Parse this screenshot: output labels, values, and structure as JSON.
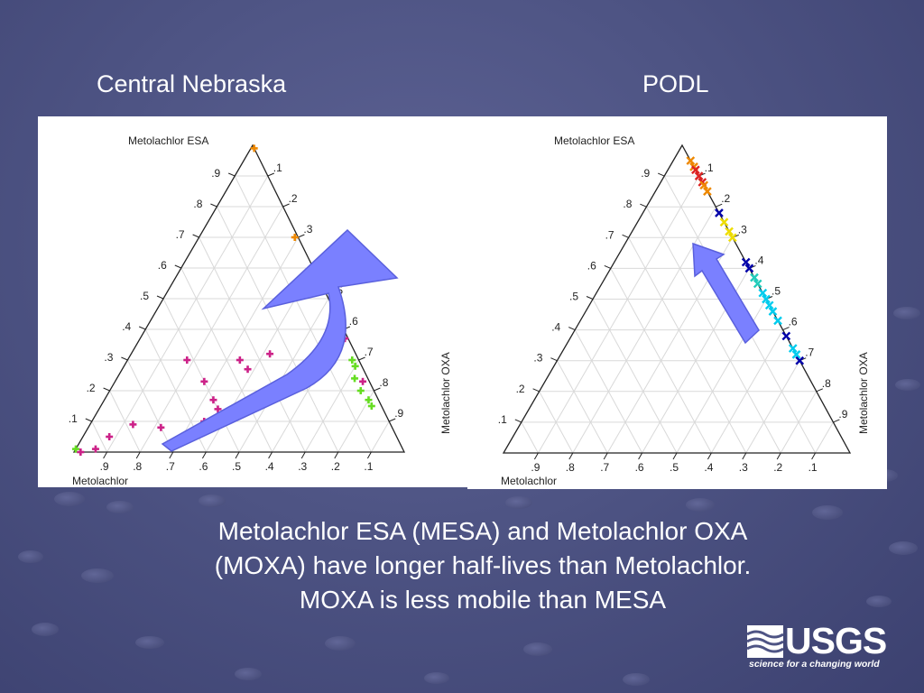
{
  "slide": {
    "caption_lines": [
      "Metolachlor ESA (MESA) and Metolachlor OXA",
      "(MOXA) have longer half-lives than Metolachlor.",
      "MOXA is less mobile than MESA"
    ]
  },
  "logo": {
    "text": "USGS",
    "tagline": "science for a changing world"
  },
  "chart_data": [
    {
      "type": "scatter",
      "subtype": "ternary",
      "title": "Central Nebraska",
      "axes": {
        "top": "Metolachlor ESA",
        "right": "Metolachlor OXA",
        "left": "Metolachlor"
      },
      "left_ticks": [
        ".1",
        ".2",
        ".3",
        ".4",
        ".5",
        ".6",
        ".7",
        ".8",
        ".9"
      ],
      "right_ticks": [
        ".1",
        ".2",
        ".3",
        ".4",
        ".5",
        ".6",
        ".7",
        ".8",
        ".9"
      ],
      "bottom_ticks": [
        ".9",
        ".8",
        ".7",
        ".6",
        ".5",
        ".4",
        ".3",
        ".2",
        ".1"
      ],
      "grid": true,
      "marker": "plus",
      "arrow": "curved",
      "series_colors": [
        "#cc2288",
        "#66dd22",
        "#ee8800"
      ],
      "points": [
        {
          "esa": 0.99,
          "oxa": 0.01,
          "color": "#ee8800"
        },
        {
          "esa": 0.7,
          "oxa": 0.29,
          "color": "#ee8800"
        },
        {
          "esa": 0.37,
          "oxa": 0.62,
          "color": "#cc2288"
        },
        {
          "esa": 0.3,
          "oxa": 0.68,
          "color": "#66dd22"
        },
        {
          "esa": 0.28,
          "oxa": 0.7,
          "color": "#66dd22"
        },
        {
          "esa": 0.24,
          "oxa": 0.72,
          "color": "#66dd22"
        },
        {
          "esa": 0.2,
          "oxa": 0.76,
          "color": "#66dd22"
        },
        {
          "esa": 0.17,
          "oxa": 0.8,
          "color": "#66dd22"
        },
        {
          "esa": 0.15,
          "oxa": 0.82,
          "color": "#66dd22"
        },
        {
          "esa": 0.23,
          "oxa": 0.75,
          "color": "#cc2288"
        },
        {
          "esa": 0.32,
          "oxa": 0.42,
          "color": "#cc2288"
        },
        {
          "esa": 0.3,
          "oxa": 0.34,
          "color": "#cc2288"
        },
        {
          "esa": 0.27,
          "oxa": 0.38,
          "color": "#cc2288"
        },
        {
          "esa": 0.3,
          "oxa": 0.18,
          "color": "#cc2288"
        },
        {
          "esa": 0.23,
          "oxa": 0.27,
          "color": "#cc2288"
        },
        {
          "esa": 0.17,
          "oxa": 0.33,
          "color": "#cc2288"
        },
        {
          "esa": 0.14,
          "oxa": 0.36,
          "color": "#cc2288"
        },
        {
          "esa": 0.09,
          "oxa": 0.39,
          "color": "#cc2288"
        },
        {
          "esa": 0.1,
          "oxa": 0.34,
          "color": "#cc2288"
        },
        {
          "esa": 0.08,
          "oxa": 0.22,
          "color": "#cc2288"
        },
        {
          "esa": 0.09,
          "oxa": 0.13,
          "color": "#cc2288"
        },
        {
          "esa": 0.05,
          "oxa": 0.08,
          "color": "#cc2288"
        },
        {
          "esa": 0.01,
          "oxa": 0.06,
          "color": "#cc2288"
        },
        {
          "esa": 0.0,
          "oxa": 0.02,
          "color": "#cc2288"
        },
        {
          "esa": 0.01,
          "oxa": 0.0,
          "color": "#66dd22"
        }
      ]
    },
    {
      "type": "scatter",
      "subtype": "ternary",
      "title": "PODL",
      "axes": {
        "top": "Metolachlor ESA",
        "right": "Metolachlor OXA",
        "left": "Metolachlor"
      },
      "left_ticks": [
        ".1",
        ".2",
        ".3",
        ".4",
        ".5",
        ".6",
        ".7",
        ".8",
        ".9"
      ],
      "right_ticks": [
        ".1",
        ".2",
        ".3",
        ".4",
        ".5",
        ".6",
        ".7",
        ".8",
        ".9"
      ],
      "bottom_ticks": [
        ".9",
        ".8",
        ".7",
        ".6",
        ".5",
        ".4",
        ".3",
        ".2",
        ".1"
      ],
      "grid": true,
      "marker": "cross",
      "arrow": "straight",
      "series_colors": [
        "#ee8800",
        "#dd2222",
        "#0000aa",
        "#eedd00",
        "#22ccbb",
        "#00ccee"
      ],
      "points": [
        {
          "esa": 0.95,
          "oxa": 0.05,
          "color": "#ee8800"
        },
        {
          "esa": 0.93,
          "oxa": 0.07,
          "color": "#ee8800"
        },
        {
          "esa": 0.92,
          "oxa": 0.08,
          "color": "#dd2222"
        },
        {
          "esa": 0.9,
          "oxa": 0.1,
          "color": "#dd2222"
        },
        {
          "esa": 0.88,
          "oxa": 0.12,
          "color": "#dd2222"
        },
        {
          "esa": 0.87,
          "oxa": 0.13,
          "color": "#ee8800"
        },
        {
          "esa": 0.85,
          "oxa": 0.15,
          "color": "#ee8800"
        },
        {
          "esa": 0.78,
          "oxa": 0.22,
          "color": "#0000aa"
        },
        {
          "esa": 0.75,
          "oxa": 0.25,
          "color": "#eedd00"
        },
        {
          "esa": 0.72,
          "oxa": 0.28,
          "color": "#eedd00"
        },
        {
          "esa": 0.7,
          "oxa": 0.3,
          "color": "#eedd00"
        },
        {
          "esa": 0.62,
          "oxa": 0.38,
          "color": "#0000aa"
        },
        {
          "esa": 0.6,
          "oxa": 0.4,
          "color": "#0000aa"
        },
        {
          "esa": 0.57,
          "oxa": 0.43,
          "color": "#22ccbb"
        },
        {
          "esa": 0.55,
          "oxa": 0.45,
          "color": "#22ccbb"
        },
        {
          "esa": 0.52,
          "oxa": 0.48,
          "color": "#00ccee"
        },
        {
          "esa": 0.5,
          "oxa": 0.5,
          "color": "#00ccee"
        },
        {
          "esa": 0.48,
          "oxa": 0.52,
          "color": "#00ccee"
        },
        {
          "esa": 0.46,
          "oxa": 0.54,
          "color": "#00ccee"
        },
        {
          "esa": 0.43,
          "oxa": 0.57,
          "color": "#00ccee"
        },
        {
          "esa": 0.38,
          "oxa": 0.62,
          "color": "#0000aa"
        },
        {
          "esa": 0.34,
          "oxa": 0.66,
          "color": "#00ccee"
        },
        {
          "esa": 0.32,
          "oxa": 0.68,
          "color": "#00ccee"
        },
        {
          "esa": 0.3,
          "oxa": 0.7,
          "color": "#0000aa"
        }
      ]
    }
  ]
}
